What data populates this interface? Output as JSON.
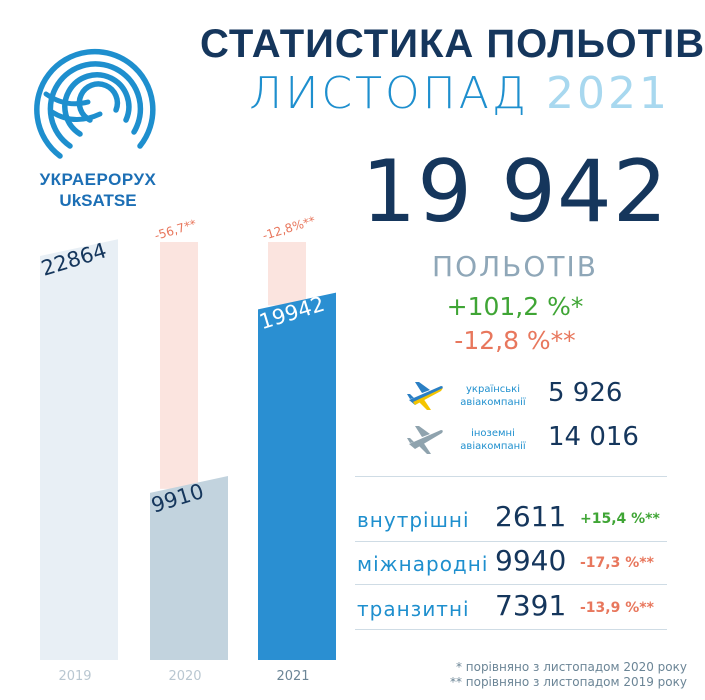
{
  "org": {
    "name_ua": "УКРАЕРОРУХ",
    "name_en": "UkSATSE"
  },
  "header": {
    "title": "СТАТИСТИКА ПОЛЬОТІВ",
    "month": "ЛИСТОПАД",
    "year": "2021"
  },
  "summary": {
    "total": "19 942",
    "total_label": "ПОЛЬОТІВ",
    "change_vs_2020": "+101,2 %*",
    "change_vs_2019": "-12,8 %**"
  },
  "airlines": [
    {
      "label": "українські авіакомпанії",
      "value": "5 926",
      "icon": "airplane-ukraine-flag-icon"
    },
    {
      "label": "іноземні авіакомпанії",
      "value": "14 016",
      "icon": "airplane-icon"
    }
  ],
  "categories": [
    {
      "label": "внутрішні",
      "value": "2611",
      "change": "+15,4 %**",
      "color": "#3fa535"
    },
    {
      "label": "міжнародні",
      "value": "9940",
      "change": "-17,3 %**",
      "color": "#e8775d"
    },
    {
      "label": "транзитні",
      "value": "7391",
      "change": "-13,9 %**",
      "color": "#e8775d"
    }
  ],
  "footnotes": [
    "* порівняно з листопадом 2020 року",
    "** порівняно з листопадом 2019 року"
  ],
  "colors": {
    "navy": "#15365c",
    "blue": "#1e8fce",
    "green": "#3fa535",
    "red": "#e8775d"
  },
  "chart_data": {
    "type": "bar",
    "categories": [
      "2019",
      "2020",
      "2021"
    ],
    "values": [
      22864,
      9910,
      19942
    ],
    "value_labels": [
      "22864",
      "9910",
      "19942"
    ],
    "change_labels": [
      "",
      "-56,7**",
      "-12,8%**"
    ],
    "ylim": [
      0,
      22864
    ],
    "bar_colors": [
      "#e8eff5",
      "#c2d3de",
      "#2a8fd2"
    ]
  }
}
